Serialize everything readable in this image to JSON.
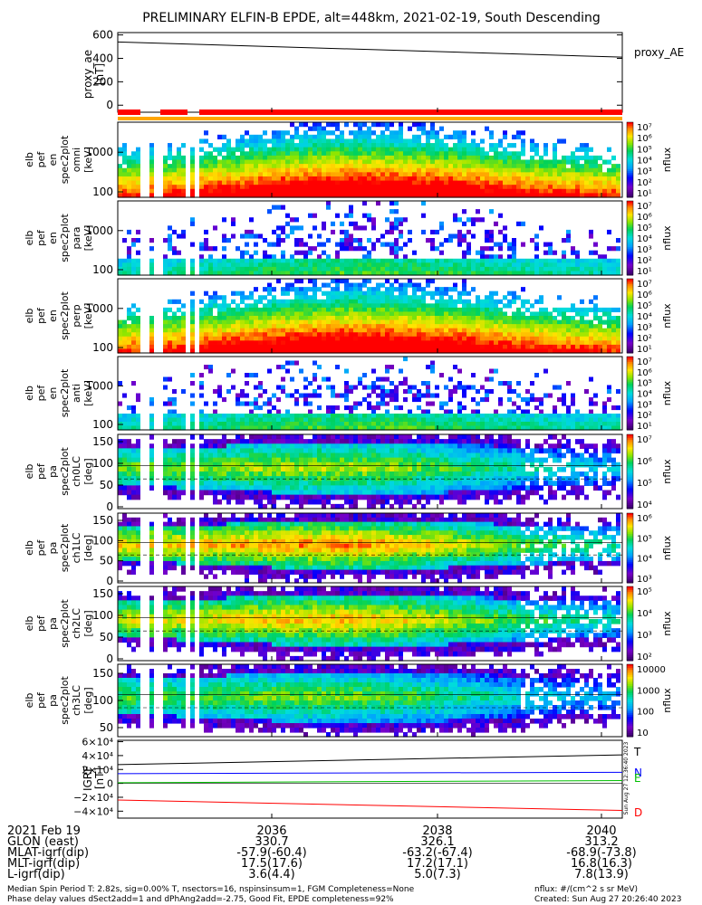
{
  "title": "PRELIMINARY ELFIN-B EPDE, alt=448km, 2021-02-19, South Descending",
  "colors": {
    "proxy_line": "#000000",
    "flag_red": "#ff0000",
    "flag_orange": "#ffa500",
    "T": "#000000",
    "N": "#0000ff",
    "E": "#00c000",
    "D": "#ff0000"
  },
  "panels": {
    "proxy_ae": {
      "ylabel": [
        "proxy_ae",
        "[nT]"
      ],
      "ticks": [
        "600",
        "400",
        "200",
        "0"
      ],
      "legend": "proxy_AE"
    },
    "spec": [
      {
        "ylabel": [
          "elb",
          "pef",
          "en",
          "spec2plot",
          "omni",
          "[keV]"
        ],
        "ticks": [
          "1000",
          "100"
        ],
        "cbar": [
          "10⁷",
          "10⁶",
          "10⁵",
          "10⁴",
          "10³",
          "10²",
          "10¹"
        ],
        "cblabel": "nflux"
      },
      {
        "ylabel": [
          "elb",
          "pef",
          "en",
          "spec2plot",
          "para",
          "[keV]"
        ],
        "ticks": [
          "1000",
          "100"
        ],
        "cbar": [
          "10⁷",
          "10⁶",
          "10⁵",
          "10⁴",
          "10³",
          "10²",
          "10¹"
        ],
        "cblabel": "nflux"
      },
      {
        "ylabel": [
          "elb",
          "pef",
          "en",
          "spec2plot",
          "perp",
          "[keV]"
        ],
        "ticks": [
          "1000",
          "100"
        ],
        "cbar": [
          "10⁷",
          "10⁶",
          "10⁵",
          "10⁴",
          "10³",
          "10²",
          "10¹"
        ],
        "cblabel": "nflux"
      },
      {
        "ylabel": [
          "elb",
          "pef",
          "en",
          "spec2plot",
          "anti",
          "[keV]"
        ],
        "ticks": [
          "1000",
          "100"
        ],
        "cbar": [
          "10⁷",
          "10⁶",
          "10⁵",
          "10⁴",
          "10³",
          "10²",
          "10¹"
        ],
        "cblabel": "nflux"
      },
      {
        "ylabel": [
          "elb",
          "pef",
          "pa",
          "spec2plot",
          "ch0LC",
          "[deg]"
        ],
        "ticks": [
          "150",
          "100",
          "50",
          "0"
        ],
        "cbar": [
          "10⁷",
          "10⁶",
          "10⁵",
          "10⁴"
        ],
        "cblabel": "nflux"
      },
      {
        "ylabel": [
          "elb",
          "pef",
          "pa",
          "spec2plot",
          "ch1LC",
          "[deg]"
        ],
        "ticks": [
          "150",
          "100",
          "50",
          "0"
        ],
        "cbar": [
          "10⁶",
          "10⁵",
          "10⁴",
          "10³"
        ],
        "cblabel": "nflux"
      },
      {
        "ylabel": [
          "elb",
          "pef",
          "pa",
          "spec2plot",
          "ch2LC",
          "[deg]"
        ],
        "ticks": [
          "150",
          "100",
          "50",
          "0"
        ],
        "cbar": [
          "10⁵",
          "10⁴",
          "10³",
          "10²"
        ],
        "cblabel": "nflux"
      },
      {
        "ylabel": [
          "elb",
          "pef",
          "pa",
          "spec2plot",
          "ch3LC",
          "[deg]"
        ],
        "ticks": [
          "150",
          "100",
          "50"
        ],
        "cbar": [
          "10000",
          "1000",
          "100",
          "10"
        ],
        "cblabel": "nflux"
      }
    ],
    "igrf": {
      "ylabel": [
        "IGRF",
        "[nT]"
      ],
      "ticks": [
        "6×10⁴",
        "4×10⁴",
        "2×10⁴",
        "0",
        "−2×10⁴",
        "−4×10⁴"
      ],
      "legend": [
        "T",
        "N",
        "E",
        "D"
      ],
      "side_stamp": "Sun Aug 27 12:36:40 2023"
    }
  },
  "footer": {
    "rows": [
      {
        "label": "2021 Feb 19",
        "values": [
          "2036",
          "2038",
          "2040"
        ]
      },
      {
        "label": "GLON (east)",
        "values": [
          "330.7",
          "326.1",
          "313.2"
        ]
      },
      {
        "label": "MLAT-igrf(dip)",
        "values": [
          "-57.9(-60.4)",
          "-63.2(-67.4)",
          "-68.9(-73.8)"
        ]
      },
      {
        "label": "MLT-igrf(dip)",
        "values": [
          "17.5(17.6)",
          "17.2(17.1)",
          "16.8(16.3)"
        ]
      },
      {
        "label": "L-igrf(dip)",
        "values": [
          "3.6(4.4)",
          "5.0(7.3)",
          "7.8(13.9)"
        ]
      }
    ],
    "note1": "Median Spin Period T: 2.82s, sig=0.00% T, nsectors=16, nspinsinsum=1, FGM Completeness=None",
    "note2": "Phase delay values dSect2add=1 and dPhAng2add=-2.75, Good Fit, EPDE completeness=92%",
    "units": "nflux: #/(cm^2 s sr MeV)",
    "created": "Created: Sun Aug 27 20:26:40 2023"
  },
  "chart_data": {
    "type": "heatmap",
    "title": "PRELIMINARY ELFIN-B EPDE, alt=448km, 2021-02-19, South Descending",
    "x_ticks": [
      "2036",
      "2038",
      "2040"
    ],
    "proxy_ae": {
      "type": "line",
      "x": [
        "start",
        "end"
      ],
      "values": [
        540,
        410
      ],
      "ylim": [
        -60,
        620
      ]
    },
    "igrf": {
      "type": "line",
      "ylim": [
        -50000,
        62000
      ],
      "series": [
        {
          "name": "T",
          "start": 27000,
          "end": 41000
        },
        {
          "name": "N",
          "start": 14000,
          "end": 16000
        },
        {
          "name": "E",
          "start": 1000,
          "end": 4000
        },
        {
          "name": "D",
          "start": -24000,
          "end": -39000
        }
      ]
    },
    "spectrograms": [
      {
        "name": "omni",
        "y": "energy [keV]",
        "peak_fraction": 0.5,
        "intensity": 1.0
      },
      {
        "name": "para",
        "y": "energy [keV]",
        "peak_fraction": 0.5,
        "intensity": 0.55
      },
      {
        "name": "perp",
        "y": "energy [keV]",
        "peak_fraction": 0.5,
        "intensity": 1.0
      },
      {
        "name": "anti",
        "y": "energy [keV]",
        "peak_fraction": 0.5,
        "intensity": 0.55
      },
      {
        "name": "ch0LC",
        "y": "pitch angle [deg]",
        "ylim": [
          0,
          180
        ],
        "intensity": 0.8
      },
      {
        "name": "ch1LC",
        "y": "pitch angle [deg]",
        "ylim": [
          0,
          180
        ],
        "intensity": 0.95
      },
      {
        "name": "ch2LC",
        "y": "pitch angle [deg]",
        "ylim": [
          0,
          180
        ],
        "intensity": 0.9
      },
      {
        "name": "ch3LC",
        "y": "pitch angle [deg]",
        "ylim": [
          30,
          180
        ],
        "intensity": 0.75
      }
    ]
  }
}
